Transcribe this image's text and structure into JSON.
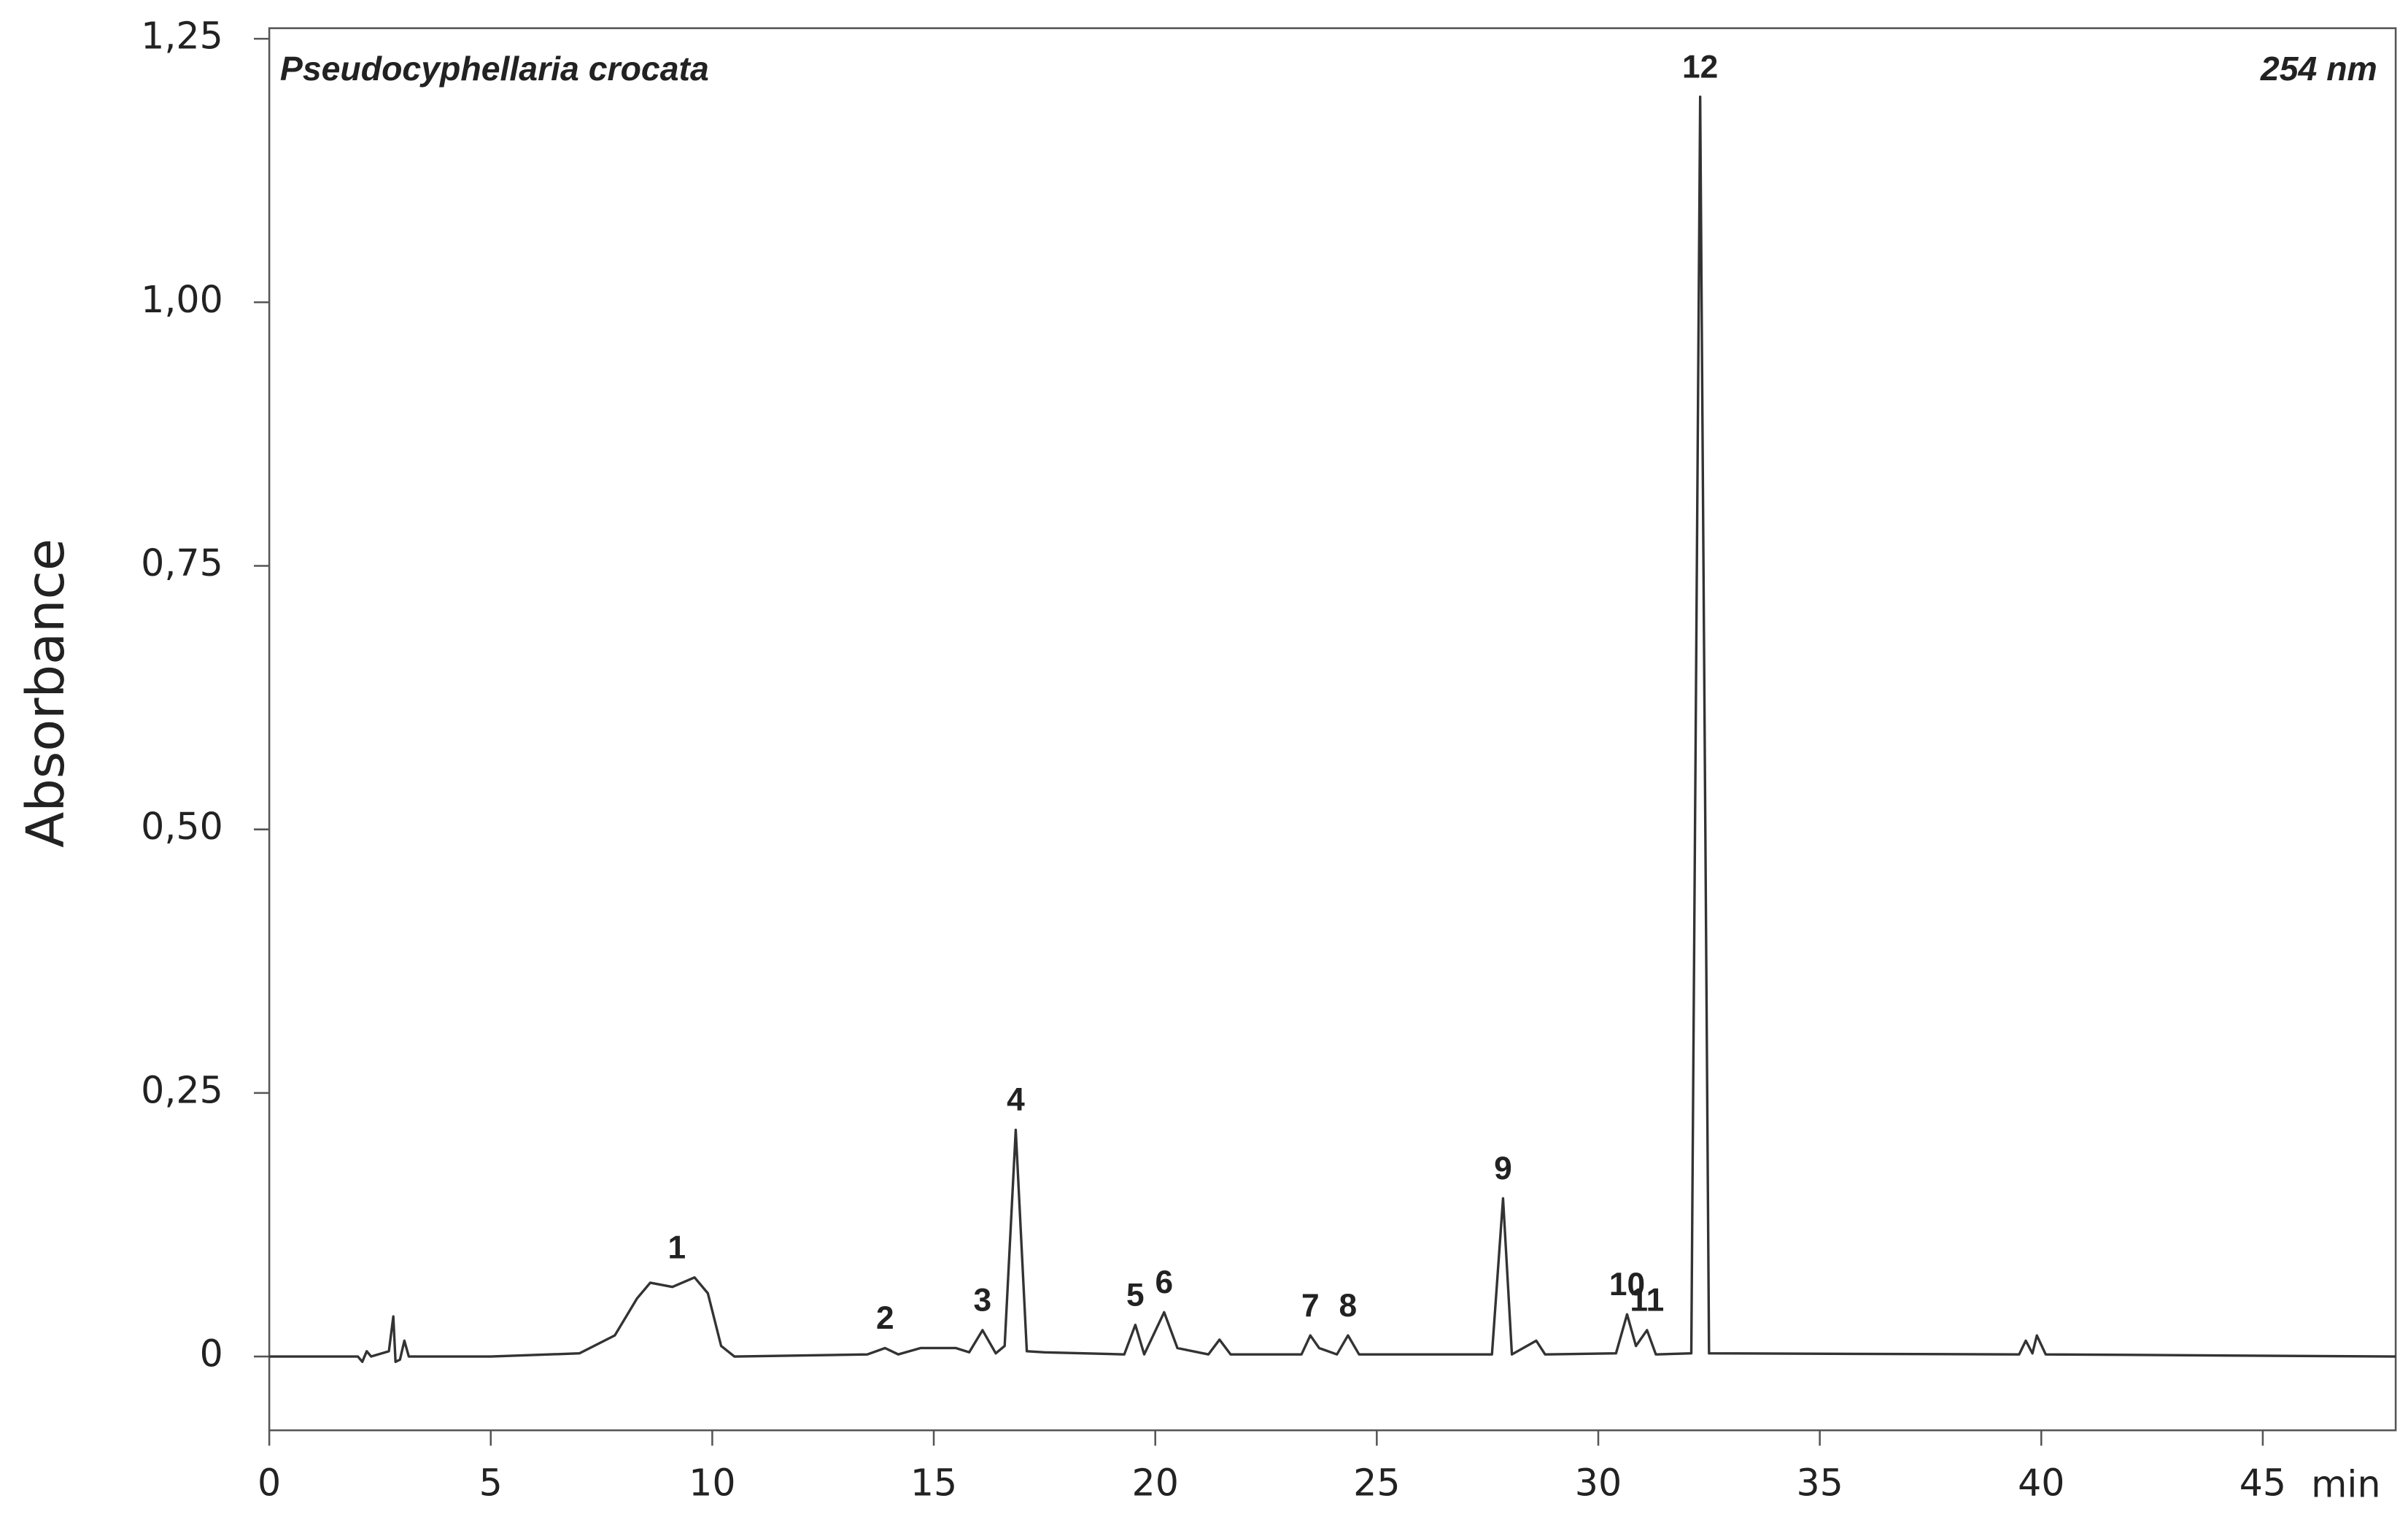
{
  "chart_data": {
    "type": "line",
    "subtitle": "Pseudocyphellaria crocata",
    "title": "254 nm",
    "y_label": "Absorbance",
    "x_label": "min",
    "color": "#333333",
    "x": [
      0,
      2,
      2.1,
      2.2,
      2.3,
      2.7,
      2.8,
      2.85,
      2.95,
      3.05,
      3.15,
      5,
      7,
      7.8,
      8.3,
      8.6,
      9.1,
      9.6,
      9.9,
      10.2,
      10.5,
      13.5,
      13.9,
      14.2,
      14.7,
      15.5,
      15.8,
      16.1,
      16.4,
      16.6,
      16.85,
      17.1,
      17.5,
      19.3,
      19.55,
      19.75,
      20.2,
      20.5,
      21.2,
      21.45,
      21.7,
      23.3,
      23.5,
      23.7,
      24.1,
      24.35,
      24.6,
      27.6,
      27.85,
      28.05,
      28.6,
      28.8,
      30.4,
      30.65,
      30.85,
      31.1,
      31.3,
      32.1,
      32.3,
      32.5,
      39.5,
      39.65,
      39.8,
      39.9,
      40.1,
      48
    ],
    "values": [
      0,
      0,
      -0.005,
      0.005,
      0,
      0.005,
      0.038,
      -0.005,
      -0.003,
      0.015,
      0,
      0,
      0.003,
      0.02,
      0.055,
      0.07,
      0.066,
      0.075,
      0.06,
      0.01,
      0,
      0.002,
      0.008,
      0.002,
      0.008,
      0.008,
      0.004,
      0.025,
      0.003,
      0.01,
      0.215,
      0.005,
      0.004,
      0.002,
      0.03,
      0.002,
      0.042,
      0.008,
      0.002,
      0.016,
      0.002,
      0.002,
      0.02,
      0.008,
      0.002,
      0.02,
      0.002,
      0.002,
      0.15,
      0.002,
      0.015,
      0.002,
      0.003,
      0.04,
      0.01,
      0.025,
      0.002,
      0.003,
      1.195,
      0.003,
      0.002,
      0.015,
      0.003,
      0.02,
      0.002,
      0
    ],
    "annotations": [
      {
        "text": "1",
        "x": 9.2,
        "y": 0.075
      },
      {
        "text": "2",
        "x": 13.9,
        "y": 0.008
      },
      {
        "text": "3",
        "x": 16.1,
        "y": 0.025
      },
      {
        "text": "4",
        "x": 16.85,
        "y": 0.215
      },
      {
        "text": "5",
        "x": 19.55,
        "y": 0.03
      },
      {
        "text": "6",
        "x": 20.2,
        "y": 0.042
      },
      {
        "text": "7",
        "x": 23.5,
        "y": 0.02
      },
      {
        "text": "8",
        "x": 24.35,
        "y": 0.02
      },
      {
        "text": "9",
        "x": 27.85,
        "y": 0.15
      },
      {
        "text": "10",
        "x": 30.65,
        "y": 0.04
      },
      {
        "text": "11",
        "x": 31.1,
        "y": 0.025
      },
      {
        "text": "12",
        "x": 32.3,
        "y": 1.195
      }
    ],
    "xlim": [
      0,
      48
    ],
    "xticks": [
      0,
      5,
      10,
      15,
      20,
      25,
      30,
      35,
      40,
      45
    ],
    "ylim": [
      -0.07,
      1.26
    ],
    "yticks": [
      0,
      {
        "value": 0.25,
        "label": "0,25"
      },
      {
        "value": 0.5,
        "label": "0,50"
      },
      {
        "value": 0.75,
        "label": "0,75"
      },
      {
        "value": 1,
        "label": "1,00"
      },
      {
        "value": 1.25,
        "label": "1,25"
      }
    ]
  }
}
